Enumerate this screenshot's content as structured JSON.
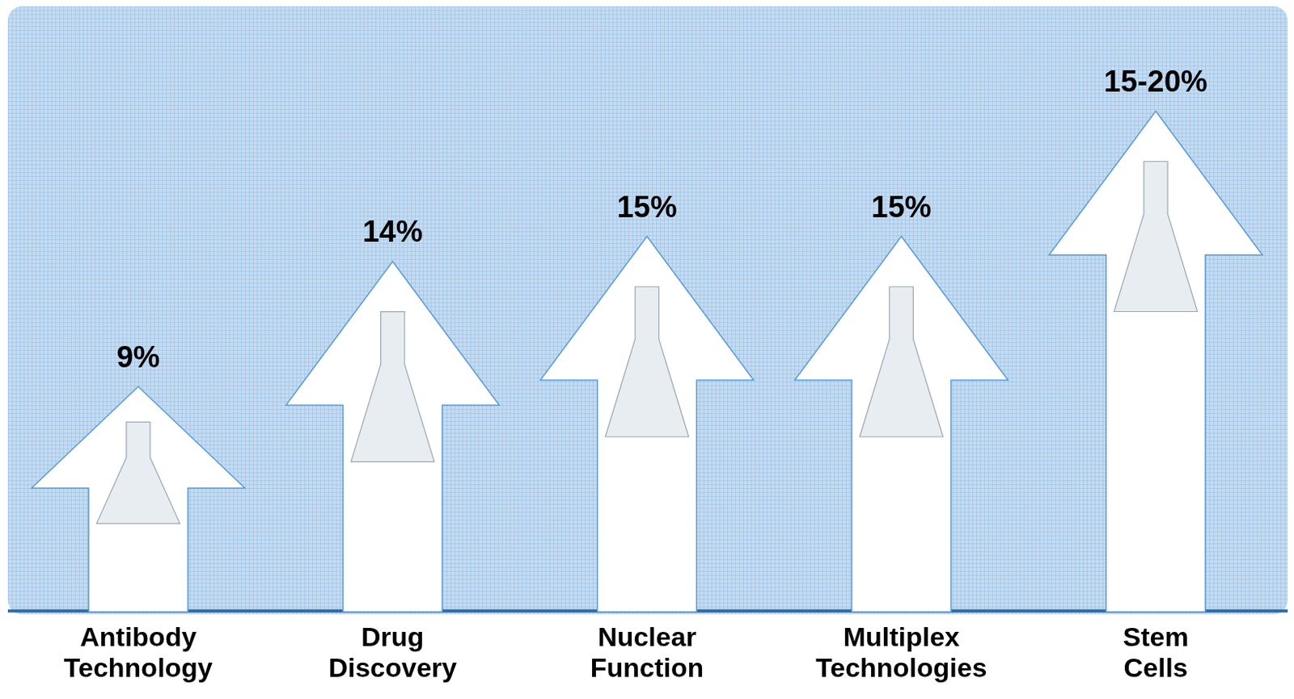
{
  "chart_data": {
    "type": "bar",
    "categories": [
      "Antibody Technology",
      "Drug Discovery",
      "Nuclear Function",
      "Multiplex Technologies",
      "Stem Cells"
    ],
    "values": [
      9,
      14,
      15,
      15,
      20
    ],
    "value_labels": [
      "9%",
      "14%",
      "15%",
      "15%",
      "15-20%"
    ],
    "color": "#ffffff",
    "ylim": [
      0,
      24
    ],
    "grid": false,
    "data_labels": true,
    "tick_labels": "x"
  }
}
